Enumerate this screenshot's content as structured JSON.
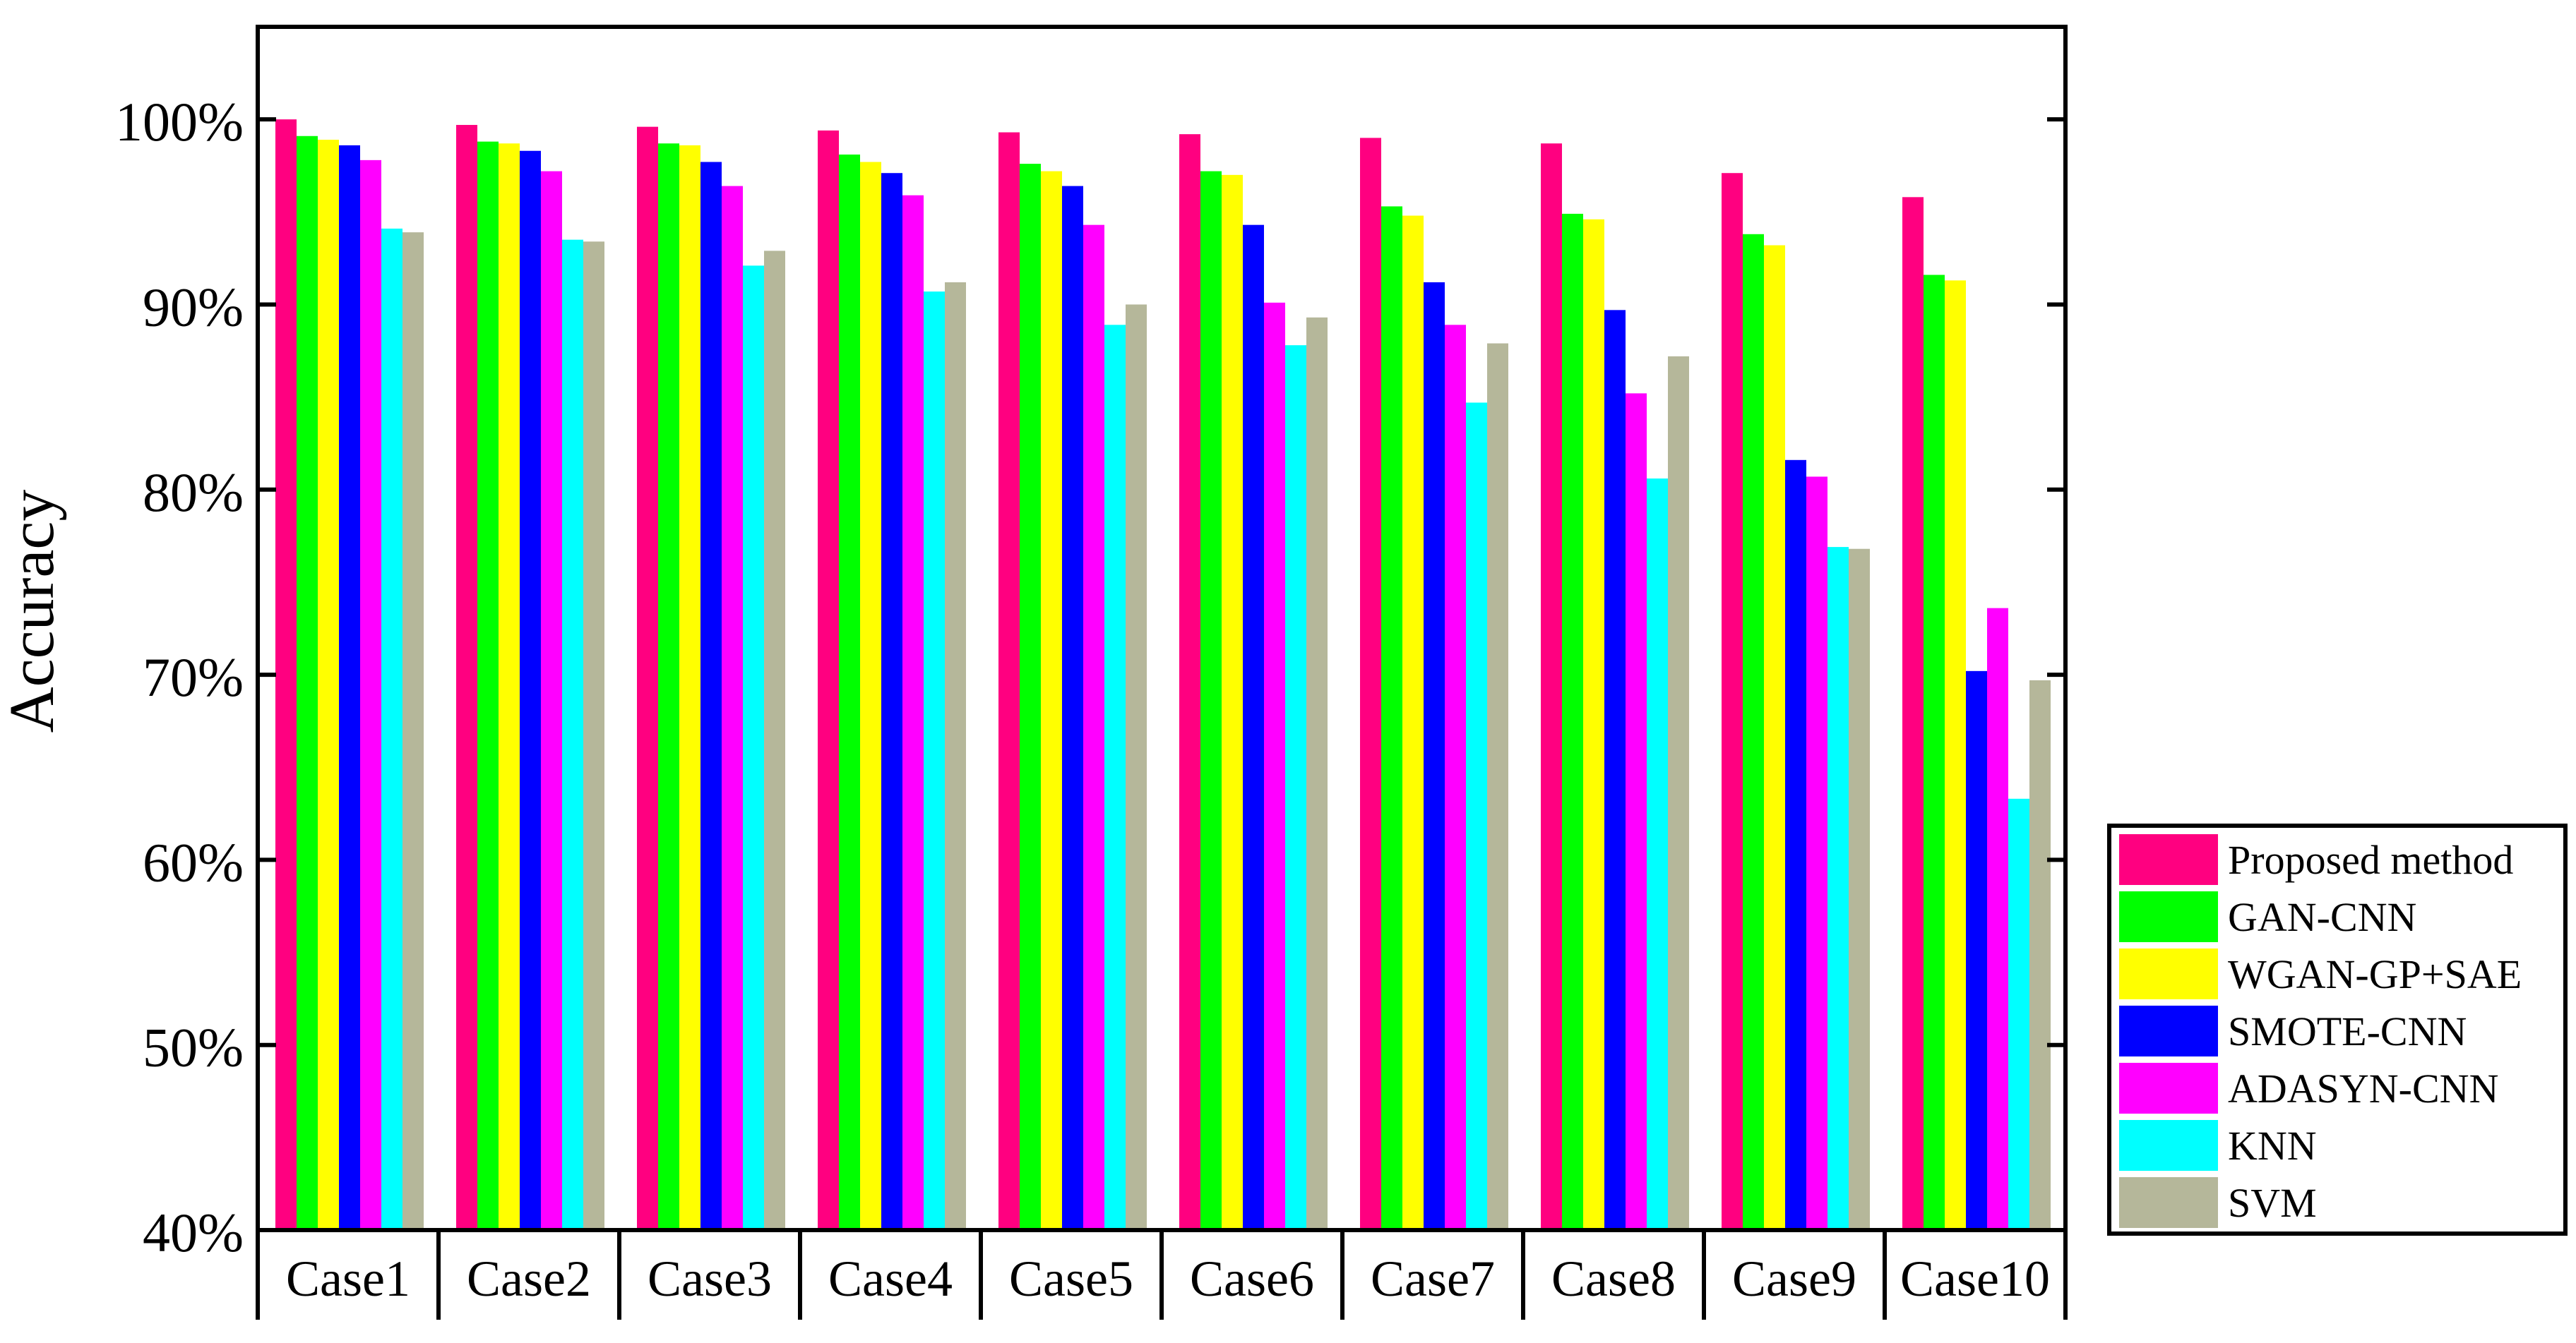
{
  "chart_data": {
    "type": "bar",
    "ylabel": "Accuracy",
    "ylim": [
      40,
      105
    ],
    "ytick_values": [
      40,
      50,
      60,
      70,
      80,
      90,
      100
    ],
    "ytick_labels": [
      "40%",
      "50%",
      "60%",
      "70%",
      "80%",
      "90%",
      "100%"
    ],
    "categories": [
      "Case1",
      "Case2",
      "Case3",
      "Case4",
      "Case5",
      "Case6",
      "Case7",
      "Case8",
      "Case9",
      "Case10"
    ],
    "legend_position": "right-bottom-outside",
    "series": [
      {
        "name": "Proposed method",
        "color": "#ff0080",
        "values": [
          100.0,
          99.7,
          99.6,
          99.4,
          99.3,
          99.2,
          99.0,
          98.7,
          97.1,
          95.8
        ]
      },
      {
        "name": "GAN-CNN",
        "color": "#00ff00",
        "values": [
          99.1,
          98.8,
          98.7,
          98.1,
          97.6,
          97.2,
          95.3,
          94.9,
          93.8,
          91.6
        ]
      },
      {
        "name": "WGAN-GP+SAE",
        "color": "#ffff00",
        "values": [
          98.9,
          98.7,
          98.6,
          97.7,
          97.2,
          97.0,
          94.8,
          94.6,
          93.2,
          91.3
        ]
      },
      {
        "name": "SMOTE-CNN",
        "color": "#0000ff",
        "values": [
          98.6,
          98.3,
          97.7,
          97.1,
          96.4,
          94.3,
          91.2,
          89.7,
          81.6,
          70.2
        ]
      },
      {
        "name": "ADASYN-CNN",
        "color": "#ff00ff",
        "values": [
          97.8,
          97.2,
          96.4,
          95.9,
          94.3,
          90.1,
          88.9,
          85.2,
          80.7,
          73.6
        ]
      },
      {
        "name": "KNN",
        "color": "#00ffff",
        "values": [
          94.1,
          93.5,
          92.1,
          90.7,
          88.9,
          87.8,
          84.7,
          80.6,
          76.9,
          63.3
        ]
      },
      {
        "name": "SVM",
        "color": "#b5b79a",
        "values": [
          93.9,
          93.4,
          92.9,
          91.2,
          90.0,
          89.3,
          87.9,
          87.2,
          76.8,
          69.7
        ]
      }
    ]
  }
}
